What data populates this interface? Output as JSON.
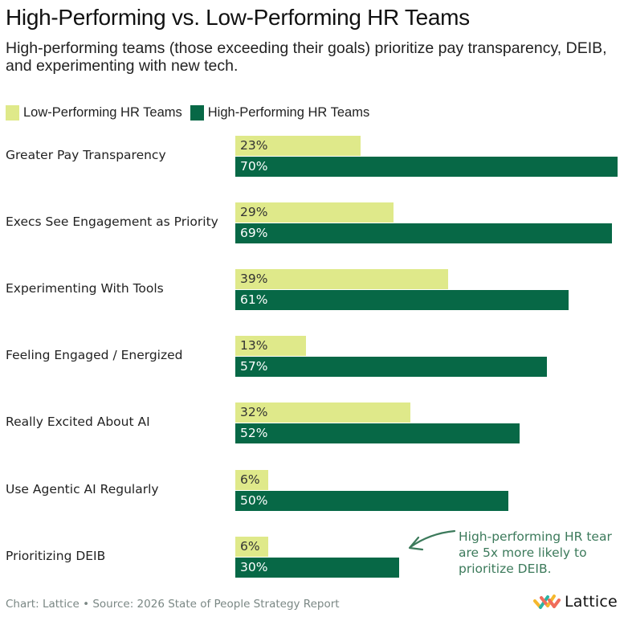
{
  "title": "High-Performing vs. Low-Performing HR Teams",
  "subtitle": "High-performing teams (those exceeding their goals) prioritize pay transparency, DEIB, and experimenting with new tech.",
  "legend": [
    {
      "label": "Low-Performing HR Teams",
      "color": "#dfe98a"
    },
    {
      "label": "High-Performing HR Teams",
      "color": "#076846"
    }
  ],
  "annotation": {
    "lines": [
      "High-performing HR tear",
      "are 5x more likely to",
      "prioritize DEIB."
    ],
    "color": "#3c7a5b",
    "points_to": "Prioritizing DEIB"
  },
  "footer": "Chart: Lattice • Source: 2026 State of People Strategy Report",
  "logo": {
    "name": "Lattice"
  },
  "chart_data": {
    "type": "bar",
    "orientation": "horizontal",
    "title": "High-Performing vs. Low-Performing HR Teams",
    "xlabel": "",
    "ylabel": "",
    "xlim": [
      0,
      70
    ],
    "grid": false,
    "legend_position": "top-left",
    "categories": [
      "Greater Pay Transparency",
      "Execs See Engagement as Priority",
      "Experimenting With Tools",
      "Feeling Engaged / Energized",
      "Really Excited About AI",
      "Use Agentic AI Regularly",
      "Prioritizing DEIB"
    ],
    "series": [
      {
        "name": "Low-Performing HR Teams",
        "color": "#dfe98a",
        "label_color": "#333333",
        "values": [
          23,
          29,
          39,
          13,
          32,
          6,
          6
        ],
        "labels": [
          "23%",
          "29%",
          "39%",
          "13%",
          "32%",
          "6%",
          "6%"
        ]
      },
      {
        "name": "High-Performing HR Teams",
        "color": "#076846",
        "label_color": "#ffffff",
        "values": [
          70,
          69,
          61,
          57,
          52,
          50,
          30
        ],
        "labels": [
          "70%",
          "69%",
          "61%",
          "57%",
          "52%",
          "50%",
          "30%"
        ]
      }
    ],
    "unit": "%"
  }
}
